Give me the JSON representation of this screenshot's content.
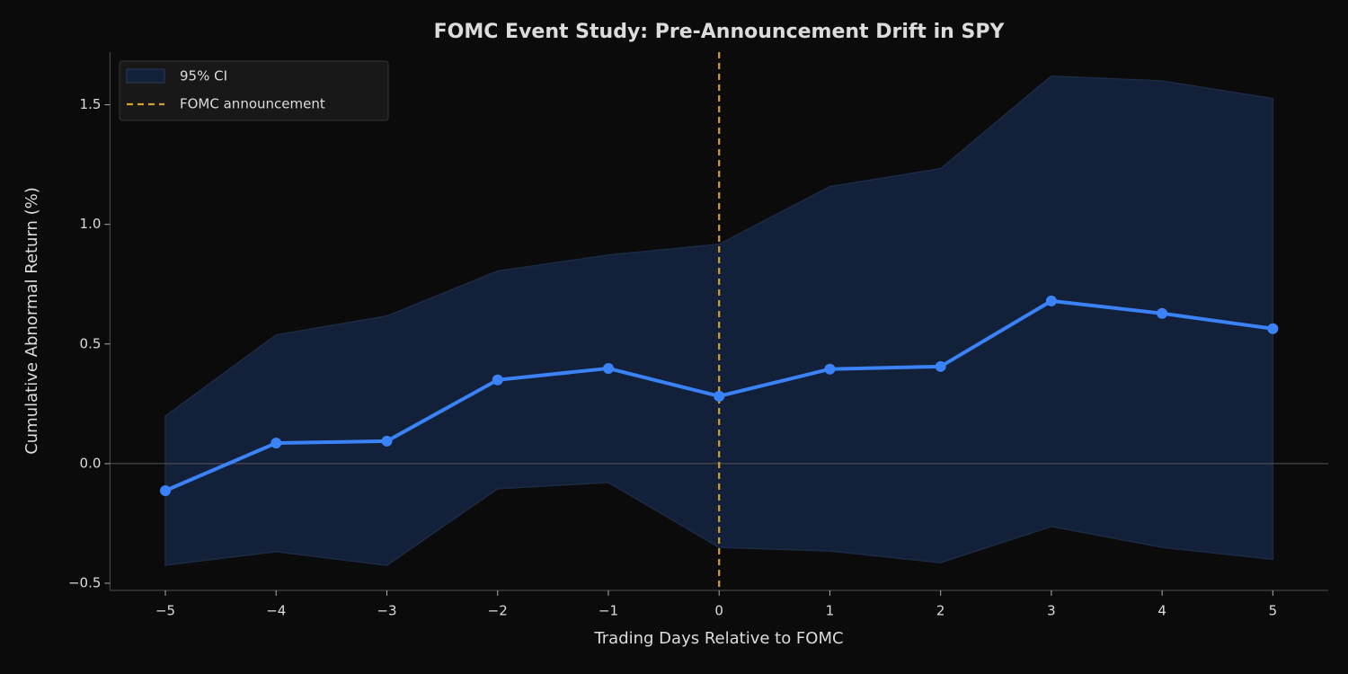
{
  "chart_data": {
    "type": "line",
    "title": "FOMC Event Study: Pre-Announcement Drift in SPY",
    "xlabel": "Trading Days Relative to FOMC",
    "ylabel": "Cumulative Abnormal Return (%)",
    "x": [
      -5,
      -4,
      -3,
      -2,
      -1,
      0,
      1,
      2,
      3,
      4,
      5
    ],
    "series": [
      {
        "color": "#3b82f6",
        "values": [
          -0.113,
          0.086,
          0.094,
          0.35,
          0.398,
          0.282,
          0.395,
          0.406,
          0.68,
          0.628,
          0.564
        ]
      }
    ],
    "ci": {
      "name": "95% CI",
      "color": "#13203a",
      "upper": [
        0.199,
        0.538,
        0.617,
        0.805,
        0.872,
        0.917,
        1.158,
        1.233,
        1.62,
        1.6,
        1.526
      ],
      "lower": [
        -0.425,
        -0.368,
        -0.425,
        -0.105,
        -0.079,
        -0.35,
        -0.365,
        -0.414,
        -0.263,
        -0.35,
        -0.4
      ]
    },
    "vline": {
      "x": 0,
      "label": "FOMC announcement",
      "color": "#d4a02a"
    },
    "hline": 0,
    "xlim": [
      -5.5,
      5.5
    ],
    "ylim": [
      -0.53,
      1.72
    ],
    "xticks": [
      {
        "value": -5,
        "label": "−5"
      },
      {
        "value": -4,
        "label": "−4"
      },
      {
        "value": -3,
        "label": "−3"
      },
      {
        "value": -2,
        "label": "−2"
      },
      {
        "value": -1,
        "label": "−1"
      },
      0,
      1,
      2,
      3,
      4,
      5
    ],
    "yticks": [
      {
        "value": -0.5,
        "label": "−0.5"
      },
      {
        "value": 0,
        "label": "0.0"
      },
      0.5,
      {
        "value": 1,
        "label": "1.0"
      },
      1.5
    ],
    "legend": "upper left"
  }
}
